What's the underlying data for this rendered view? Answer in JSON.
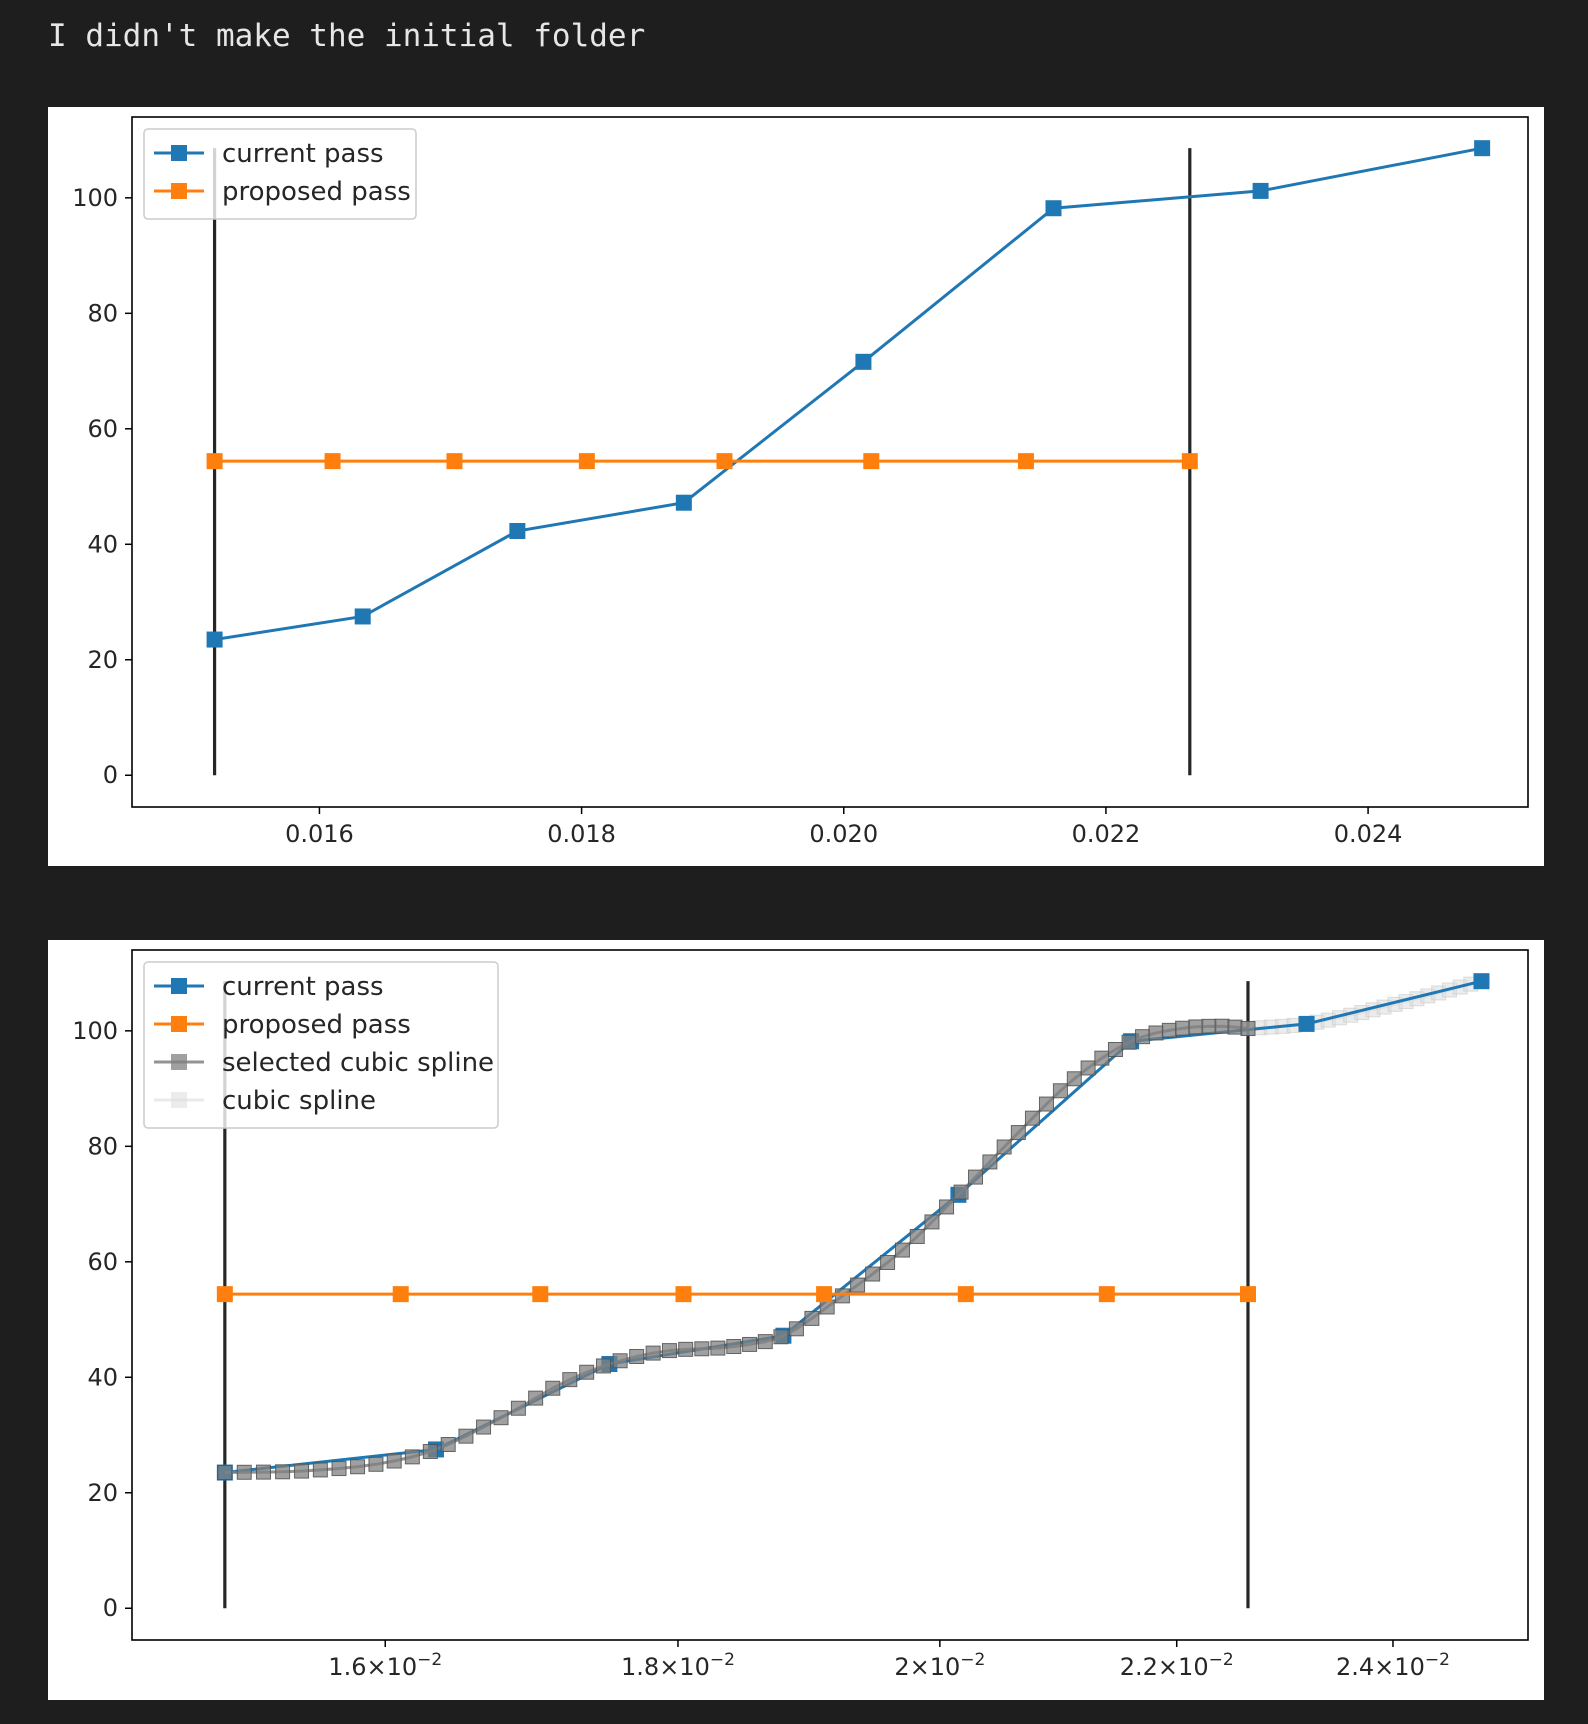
{
  "output": {
    "text": "I didn't make the initial folder"
  },
  "chart_data": [
    {
      "type": "line",
      "title": "",
      "xlabel": "",
      "ylabel": "",
      "xlim": [
        0.01457,
        0.02522
      ],
      "ylim": [
        -5.5,
        114
      ],
      "grid": false,
      "legend_position": "top-left",
      "colors": {
        "current": "#1f77b4",
        "proposed": "#ff7f0e",
        "vline": "#000000"
      },
      "xticks": [
        0.016,
        0.018,
        0.02,
        0.022,
        0.024
      ],
      "xtick_labels": [
        "0.016",
        "0.018",
        "0.020",
        "0.022",
        "0.024"
      ],
      "yticks": [
        0,
        20,
        40,
        60,
        80,
        100
      ],
      "ytick_labels": [
        "0",
        "20",
        "40",
        "60",
        "80",
        "100"
      ],
      "series": [
        {
          "name": "current pass",
          "x": [
            0.0152,
            0.01633,
            0.01751,
            0.01878,
            0.02015,
            0.0216,
            0.02318,
            0.02487
          ],
          "y": [
            23.5,
            27.5,
            42.3,
            47.2,
            71.6,
            98.2,
            101.2,
            108.6
          ]
        },
        {
          "name": "proposed pass",
          "x": [
            0.0152,
            0.0161,
            0.01703,
            0.01804,
            0.01909,
            0.02021,
            0.02139,
            0.02264
          ],
          "y": [
            54.4,
            54.4,
            54.4,
            54.4,
            54.4,
            54.4,
            54.4,
            54.4
          ]
        }
      ],
      "vlines": [
        {
          "x": 0.0152,
          "ymin": 0,
          "ymax": 108.6
        },
        {
          "x": 0.02264,
          "ymin": 0,
          "ymax": 108.6
        }
      ]
    },
    {
      "type": "line",
      "title": "",
      "xlabel": "",
      "ylabel": "",
      "xscale": "log",
      "xlim": [
        0.01445,
        0.02534
      ],
      "ylim": [
        -5.5,
        114
      ],
      "grid": false,
      "legend_position": "top-left",
      "colors": {
        "current": "#1f77b4",
        "proposed": "#ff7f0e",
        "selected": "#808080",
        "spline": "#dcdcdc",
        "vline": "#000000"
      },
      "xticks": [
        0.016,
        0.018,
        0.02,
        0.022,
        0.024
      ],
      "xtick_labels": [
        {
          "mant": "1.6",
          "exp": "−2"
        },
        {
          "mant": "1.8",
          "exp": "−2"
        },
        {
          "mant": "2",
          "exp": "−2"
        },
        {
          "mant": "2.2",
          "exp": "−2"
        },
        {
          "mant": "2.4",
          "exp": "−2"
        }
      ],
      "yticks": [
        0,
        20,
        40,
        60,
        80,
        100
      ],
      "ytick_labels": [
        "0",
        "20",
        "40",
        "60",
        "80",
        "100"
      ],
      "series": [
        {
          "name": "current pass",
          "x": [
            0.015,
            0.01633,
            0.01751,
            0.01878,
            0.02015,
            0.0216,
            0.02318,
            0.02487
          ],
          "y": [
            23.5,
            27.5,
            42.3,
            47.2,
            71.6,
            98.2,
            101.2,
            108.6
          ]
        },
        {
          "name": "proposed pass",
          "x": [
            0.015,
            0.0161,
            0.01703,
            0.01804,
            0.01909,
            0.02021,
            0.02139,
            0.02264
          ],
          "y": [
            54.4,
            54.4,
            54.4,
            54.4,
            54.4,
            54.4,
            54.4,
            54.4
          ]
        },
        {
          "name": "selected cubic spline",
          "x_range": [
            0.015,
            0.02264
          ],
          "knots_x": [
            0.015,
            0.0155,
            0.016,
            0.01633,
            0.0168,
            0.0172,
            0.01751,
            0.0179,
            0.0184,
            0.01878,
            0.0192,
            0.0197,
            0.02015,
            0.0206,
            0.0211,
            0.0216,
            0.022,
            0.0224,
            0.02264
          ],
          "knots_y": [
            23.5,
            23.8,
            25.2,
            27.5,
            33.5,
            39.2,
            42.3,
            44.5,
            45.3,
            47.2,
            53.6,
            62.0,
            71.6,
            81.5,
            91.5,
            98.2,
            100.3,
            100.8,
            100.4
          ],
          "marker_count": 66
        },
        {
          "name": "cubic spline",
          "x_range": [
            0.02264,
            0.02487
          ],
          "knots_x": [
            0.02264,
            0.02318,
            0.024,
            0.02487
          ],
          "knots_y": [
            100.4,
            101.2,
            104.5,
            108.6
          ],
          "marker_count": 22
        }
      ],
      "vlines": [
        {
          "x": 0.015,
          "ymin": 0,
          "ymax": 108.6
        },
        {
          "x": 0.02264,
          "ymin": 0,
          "ymax": 108.6
        }
      ]
    }
  ]
}
